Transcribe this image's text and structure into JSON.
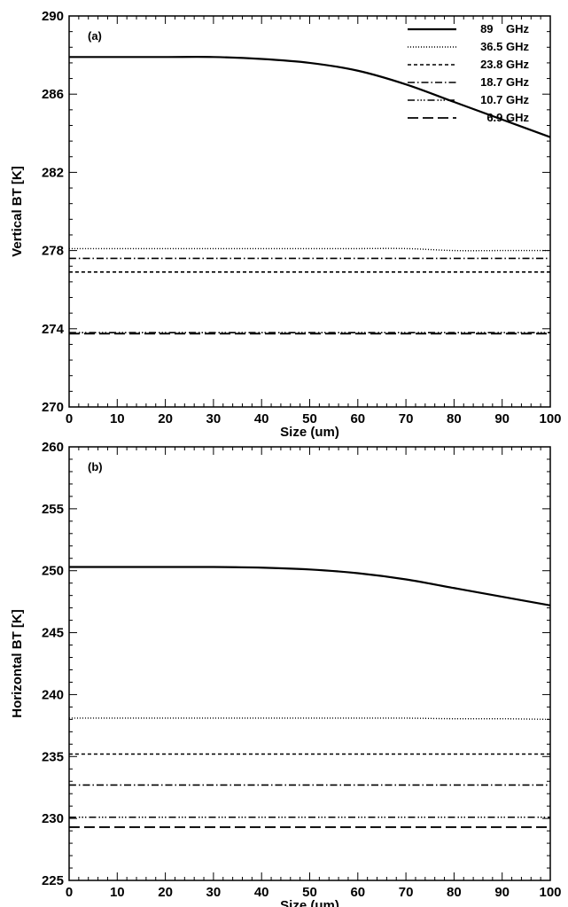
{
  "chart_data": [
    {
      "type": "line",
      "panel_label": "(a)",
      "xlabel": "Size (um)",
      "ylabel": "Vertical BT [K]",
      "xlim": [
        0,
        100
      ],
      "ylim": [
        270,
        290
      ],
      "xticks": [
        0,
        10,
        20,
        30,
        40,
        50,
        60,
        70,
        80,
        90,
        100
      ],
      "yticks": [
        270,
        274,
        278,
        282,
        286,
        290
      ],
      "x": [
        0,
        10,
        20,
        30,
        40,
        50,
        60,
        70,
        80,
        90,
        100
      ],
      "legend": {
        "placement": "top-right"
      },
      "series": [
        {
          "name": "89    GHz",
          "values": [
            287.9,
            287.9,
            287.9,
            287.9,
            287.8,
            287.6,
            287.2,
            286.5,
            285.6,
            284.7,
            283.8
          ]
        },
        {
          "name": "36.5 GHz",
          "values": [
            278.1,
            278.1,
            278.1,
            278.1,
            278.1,
            278.1,
            278.1,
            278.1,
            278.0,
            278.0,
            278.0
          ]
        },
        {
          "name": "23.8 GHz",
          "values": [
            276.9,
            276.9,
            276.9,
            276.9,
            276.9,
            276.9,
            276.9,
            276.9,
            276.9,
            276.9,
            276.9
          ]
        },
        {
          "name": "18.7 GHz",
          "values": [
            277.6,
            277.6,
            277.6,
            277.6,
            277.6,
            277.6,
            277.6,
            277.6,
            277.6,
            277.6,
            277.6
          ]
        },
        {
          "name": "10.7 GHz",
          "values": [
            273.8,
            273.8,
            273.8,
            273.8,
            273.8,
            273.8,
            273.8,
            273.8,
            273.8,
            273.8,
            273.8
          ]
        },
        {
          "name": "6.9 GHz",
          "values": [
            273.75,
            273.75,
            273.75,
            273.75,
            273.75,
            273.75,
            273.75,
            273.75,
            273.75,
            273.75,
            273.75
          ]
        }
      ]
    },
    {
      "type": "line",
      "panel_label": "(b)",
      "xlabel": "Size (um)",
      "ylabel": "Horizontal BT [K]",
      "xlim": [
        0,
        100
      ],
      "ylim": [
        225,
        260
      ],
      "xticks": [
        0,
        10,
        20,
        30,
        40,
        50,
        60,
        70,
        80,
        90,
        100
      ],
      "yticks": [
        225,
        230,
        235,
        240,
        245,
        250,
        255,
        260
      ],
      "x": [
        0,
        10,
        20,
        30,
        40,
        50,
        60,
        70,
        80,
        90,
        100
      ],
      "series": [
        {
          "values": [
            250.3,
            250.3,
            250.3,
            250.3,
            250.25,
            250.1,
            249.8,
            249.3,
            248.6,
            247.9,
            247.2
          ]
        },
        {
          "values": [
            238.1,
            238.1,
            238.1,
            238.1,
            238.1,
            238.1,
            238.1,
            238.1,
            238.05,
            238.05,
            238.0
          ]
        },
        {
          "values": [
            235.2,
            235.2,
            235.2,
            235.2,
            235.2,
            235.2,
            235.2,
            235.2,
            235.2,
            235.2,
            235.2
          ]
        },
        {
          "values": [
            232.7,
            232.7,
            232.7,
            232.7,
            232.7,
            232.7,
            232.7,
            232.7,
            232.7,
            232.7,
            232.7
          ]
        },
        {
          "values": [
            230.1,
            230.1,
            230.1,
            230.1,
            230.1,
            230.1,
            230.1,
            230.1,
            230.1,
            230.1,
            230.1
          ]
        },
        {
          "values": [
            229.3,
            229.3,
            229.3,
            229.3,
            229.3,
            229.3,
            229.3,
            229.3,
            229.3,
            229.3,
            229.3
          ]
        }
      ]
    }
  ]
}
